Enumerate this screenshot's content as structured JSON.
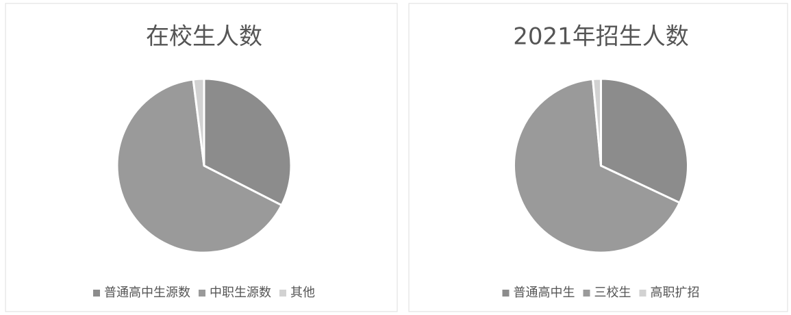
{
  "chart_data": [
    {
      "type": "pie",
      "title": "在校生人数",
      "categories": [
        "普通高中生源数",
        "中职生源数",
        "其他"
      ],
      "values": [
        32.5,
        65.5,
        2
      ],
      "colors": [
        "#8c8c8c",
        "#9a9a9a",
        "#d2d2d2"
      ]
    },
    {
      "type": "pie",
      "title": "2021年招生人数",
      "categories": [
        "普通高中生",
        "三校生",
        "高职扩招"
      ],
      "values": [
        32,
        66.5,
        1.5
      ],
      "colors": [
        "#8c8c8c",
        "#9a9a9a",
        "#d2d2d2"
      ]
    }
  ]
}
